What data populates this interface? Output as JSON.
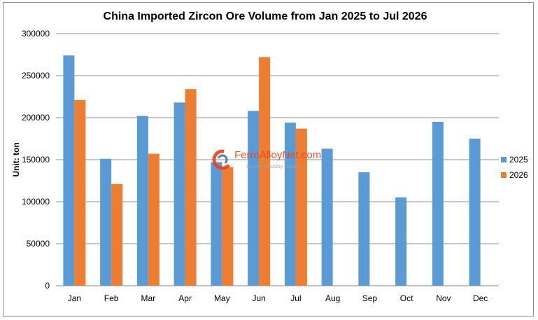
{
  "chart_data": {
    "type": "bar",
    "title": "China Imported Zircon Ore Volume from Jan 2025 to Jul 2026",
    "xlabel": "",
    "ylabel": "Unit: ton",
    "ylim": [
      0,
      300000
    ],
    "yticks": [
      "0",
      "50000",
      "100000",
      "150000",
      "200000",
      "250000",
      "300000"
    ],
    "grid": true,
    "legend_position": "right",
    "categories": [
      "Jan",
      "Feb",
      "Mar",
      "Apr",
      "May",
      "Jun",
      "Jul",
      "Aug",
      "Sep",
      "Oct",
      "Nov",
      "Dec"
    ],
    "series": [
      {
        "name": "2025",
        "color": "#5b9bd5",
        "values": [
          274000,
          151000,
          202000,
          218000,
          147000,
          208000,
          194000,
          163000,
          135000,
          105000,
          195000,
          175000
        ]
      },
      {
        "name": "2026",
        "color": "#ed7d31",
        "values": [
          221000,
          121000,
          157000,
          234000,
          141000,
          272000,
          187000,
          null,
          null,
          null,
          null,
          null
        ]
      }
    ]
  },
  "watermark": {
    "brand": "FerroAlloyNet.com",
    "tagline": "China FerroAlloy Market",
    "icon": "ferroalloynet-logo-icon",
    "color": "#e8441f"
  }
}
